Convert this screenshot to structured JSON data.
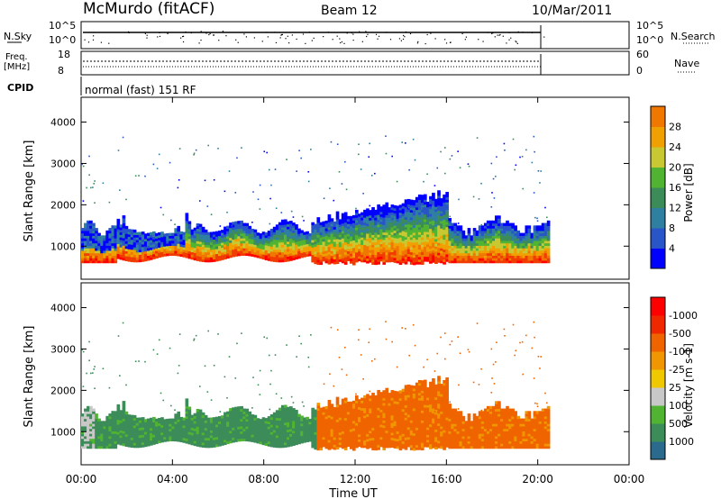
{
  "header": {
    "station": "McMurdo (fitACF)",
    "beam": "Beam 12",
    "date": "10/Mar/2011"
  },
  "top_panels": {
    "nsky_label": "N.Sky",
    "nsearch_label": "N.Search",
    "nsky_ticks": [
      "10^5",
      "10^0"
    ],
    "nsearch_ticks": [
      "10^5",
      "10^0"
    ],
    "freq_label": "Freq.",
    "freq_unit": "[MHz]",
    "freq_ticks": [
      "18",
      "8"
    ],
    "nave_label": "Nave",
    "nave_ticks": [
      "60",
      "0"
    ],
    "cpid_label": "CPID",
    "cpid_value": "normal (fast) 151 RF"
  },
  "chart_data": [
    {
      "type": "heatmap",
      "name": "power",
      "ylabel": "Slant Range [km]",
      "xlabel": "",
      "xlim": [
        0,
        24
      ],
      "ylim": [
        200,
        4600
      ],
      "y_ticks": [
        "1000",
        "2000",
        "3000",
        "4000"
      ],
      "colorbar": {
        "label": "Power [dB]",
        "ticks": [
          "4",
          "8",
          "12",
          "16",
          "20",
          "24",
          "28"
        ],
        "range": [
          0,
          32
        ],
        "colors": [
          "#0000ff",
          "#2855c8",
          "#2e7fa0",
          "#3c8c5a",
          "#50b432",
          "#c8c832",
          "#f0a000",
          "#f07800",
          "#f03c00",
          "#ff0000"
        ]
      }
    },
    {
      "type": "heatmap",
      "name": "velocity",
      "ylabel": "Slant Range [km]",
      "xlabel": "Time UT",
      "xlim": [
        0,
        24
      ],
      "ylim": [
        200,
        4600
      ],
      "y_ticks": [
        "1000",
        "2000",
        "3000",
        "4000"
      ],
      "x_ticks": [
        "00:00",
        "04:00",
        "08:00",
        "12:00",
        "16:00",
        "20:00",
        "00:00"
      ],
      "colorbar": {
        "label": "Velocity [m s-1]",
        "ticks": [
          "1000",
          "500",
          "100",
          "25",
          "-25",
          "-100",
          "-500",
          "-1000"
        ],
        "colors": [
          "#1e3cb4",
          "#2a6a8c",
          "#3c8c5a",
          "#50b432",
          "#c8c8c8",
          "#f0c800",
          "#f09600",
          "#f06400",
          "#f02800",
          "#ff0000"
        ]
      }
    }
  ]
}
